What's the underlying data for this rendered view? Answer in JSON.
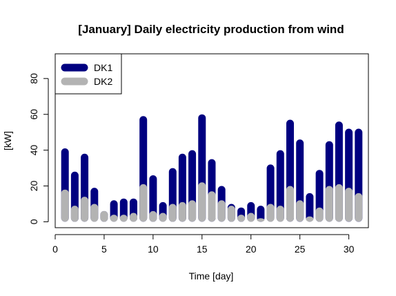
{
  "chart_data": {
    "type": "bar",
    "title": "[January] Daily electricity production from wind",
    "xlabel": "Time [day]",
    "ylabel": "[kW]",
    "xlim": [
      0,
      32
    ],
    "ylim": [
      0,
      90
    ],
    "x_ticks": [
      0,
      5,
      10,
      15,
      20,
      25,
      30
    ],
    "y_ticks": [
      0,
      20,
      40,
      60,
      80
    ],
    "grid": false,
    "legend_position": "top-left",
    "x": [
      1,
      2,
      3,
      4,
      5,
      6,
      7,
      8,
      9,
      10,
      11,
      12,
      13,
      14,
      15,
      16,
      17,
      18,
      19,
      20,
      21,
      22,
      23,
      24,
      25,
      26,
      27,
      28,
      29,
      30,
      31
    ],
    "series": [
      {
        "name": "DK1",
        "color": "#000080",
        "values": [
          41,
          28,
          38,
          19,
          6,
          12,
          13,
          13,
          59,
          26,
          11,
          30,
          38,
          40,
          60,
          35,
          20,
          10,
          8,
          11,
          9,
          32,
          40,
          57,
          46,
          16,
          29,
          45,
          56,
          52,
          52
        ]
      },
      {
        "name": "DK2",
        "color": "#b3b3b3",
        "values": [
          18,
          9,
          14,
          10,
          6,
          4,
          4,
          5,
          21,
          6,
          5,
          10,
          11,
          12,
          22,
          17,
          12,
          9,
          4,
          5,
          2,
          10,
          9,
          20,
          12,
          3,
          8,
          20,
          21,
          19,
          16
        ]
      }
    ]
  }
}
